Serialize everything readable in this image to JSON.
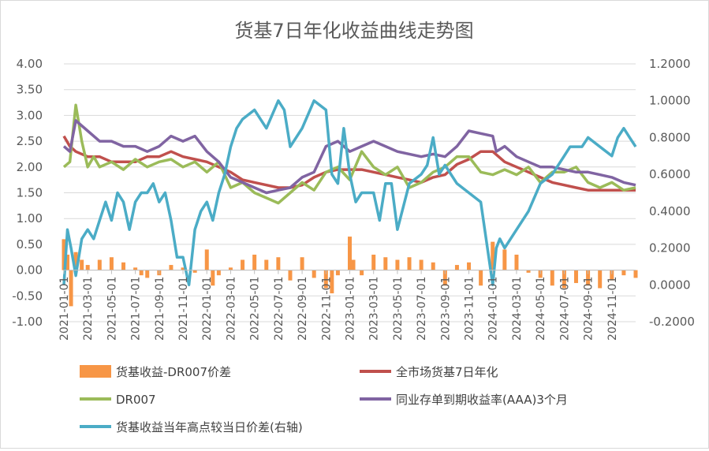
{
  "chart_data": {
    "type": "line",
    "title": "货基7日年化收益曲线走势图",
    "y_left": {
      "ticks": [
        "4.00",
        "3.50",
        "3.00",
        "2.50",
        "2.00",
        "1.50",
        "1.00",
        "0.50",
        "0.00",
        "-0.50",
        "-1.00"
      ],
      "ylim": [
        -1.0,
        4.0
      ]
    },
    "y_right": {
      "ticks": [
        "1.2000",
        "1.0000",
        "0.8000",
        "0.6000",
        "0.4000",
        "0.2000",
        "0.0000",
        "-0.2000"
      ],
      "ylim": [
        -0.2,
        1.2
      ]
    },
    "x_ticks": [
      "2021-01-01",
      "2021-03-01",
      "2021-05-01",
      "2021-07-01",
      "2021-09-01",
      "2021-11-01",
      "2022-01-01",
      "2022-03-01",
      "2022-05-01",
      "2022-07-01",
      "2022-09-01",
      "2022-11-01",
      "2023-01-01",
      "2023-03-01",
      "2023-05-01",
      "2023-07-01",
      "2023-09-01",
      "2023-11-01",
      "2024-01-01",
      "2024-03-01",
      "2024-05-01",
      "2024-07-01",
      "2024-09-01",
      "2024-11-01"
    ],
    "x_range_months": [
      0,
      48
    ],
    "grid": "horizontal",
    "legend_position": "bottom",
    "series": [
      {
        "name": "货基收益-DR007价差",
        "type": "bar",
        "axis": "left",
        "color": "#F79646",
        "x": [
          0,
          0.3,
          0.6,
          1,
          1.5,
          2,
          3,
          4,
          5,
          6,
          6.5,
          7,
          8,
          9,
          10,
          11,
          12,
          12.5,
          13,
          14,
          15,
          16,
          17,
          18,
          19,
          20,
          21,
          22,
          22.5,
          23,
          24,
          24.3,
          25,
          26,
          27,
          28,
          29,
          30,
          31,
          32,
          33,
          34,
          35,
          36,
          37,
          38,
          39,
          40,
          41,
          42,
          43,
          44,
          45,
          46,
          47,
          48
        ],
        "values": [
          0.6,
          0.3,
          -0.7,
          0.35,
          0.2,
          0.1,
          0.2,
          0.25,
          0.15,
          0.05,
          -0.1,
          -0.15,
          -0.1,
          0.1,
          0.05,
          -0.05,
          0.4,
          -0.3,
          -0.1,
          0.05,
          0.2,
          0.3,
          0.2,
          0.25,
          -0.2,
          0.25,
          -0.15,
          -0.35,
          -0.45,
          -0.1,
          0.65,
          0.2,
          -0.1,
          0.3,
          0.25,
          0.2,
          0.25,
          0.2,
          0.15,
          -0.3,
          0.1,
          0.15,
          -0.3,
          0.55,
          0.4,
          0.3,
          -0.05,
          -0.15,
          -0.3,
          -0.35,
          -0.25,
          -0.3,
          -0.35,
          -0.2,
          -0.1,
          -0.15
        ]
      },
      {
        "name": "全市场货基7日年化",
        "type": "line",
        "axis": "left",
        "color": "#C0504D",
        "x": [
          0,
          0.5,
          1,
          2,
          3,
          4,
          5,
          6,
          7,
          8,
          9,
          10,
          11,
          12,
          13,
          14,
          15,
          16,
          17,
          18,
          19,
          20,
          21,
          22,
          23,
          24,
          25,
          26,
          27,
          28,
          29,
          30,
          31,
          32,
          33,
          34,
          35,
          36,
          37,
          38,
          39,
          40,
          41,
          42,
          43,
          44,
          45,
          46,
          47,
          48
        ],
        "values": [
          2.6,
          2.4,
          2.3,
          2.2,
          2.2,
          2.1,
          2.1,
          2.1,
          2.2,
          2.2,
          2.3,
          2.2,
          2.15,
          2.1,
          2.0,
          1.9,
          1.75,
          1.7,
          1.65,
          1.6,
          1.6,
          1.65,
          1.8,
          1.9,
          1.95,
          1.95,
          1.95,
          1.9,
          1.85,
          1.8,
          1.75,
          1.7,
          1.8,
          1.85,
          2.05,
          2.15,
          2.3,
          2.3,
          2.1,
          2.0,
          1.9,
          1.8,
          1.7,
          1.65,
          1.6,
          1.55,
          1.55,
          1.55,
          1.55,
          1.55
        ]
      },
      {
        "name": "DR007",
        "type": "line",
        "axis": "left",
        "color": "#9BBB59",
        "x": [
          0,
          0.5,
          1,
          1.5,
          2,
          2.5,
          3,
          4,
          5,
          6,
          7,
          8,
          9,
          10,
          11,
          12,
          13,
          14,
          15,
          16,
          17,
          18,
          19,
          20,
          21,
          22,
          23,
          24,
          25,
          26,
          27,
          28,
          29,
          30,
          31,
          32,
          33,
          34,
          35,
          36,
          37,
          38,
          39,
          40,
          41,
          42,
          43,
          44,
          45,
          46,
          47,
          48
        ],
        "values": [
          2.0,
          2.1,
          3.2,
          2.5,
          2.0,
          2.2,
          2.0,
          2.1,
          1.95,
          2.15,
          2.0,
          2.1,
          2.15,
          2.0,
          2.1,
          1.9,
          2.1,
          1.6,
          1.7,
          1.5,
          1.4,
          1.3,
          1.5,
          1.7,
          1.55,
          1.9,
          2.0,
          1.75,
          2.3,
          2.0,
          1.85,
          2.0,
          1.6,
          1.7,
          1.9,
          2.0,
          2.2,
          2.2,
          1.9,
          1.85,
          1.95,
          1.85,
          2.0,
          1.7,
          1.9,
          1.9,
          2.0,
          1.7,
          1.6,
          1.7,
          1.55,
          1.6
        ]
      },
      {
        "name": "同业存单到期收益率(AAA)3个月",
        "type": "line",
        "axis": "left",
        "color": "#8064A2",
        "x": [
          0,
          0.5,
          1,
          1.5,
          2,
          3,
          4,
          5,
          6,
          7,
          8,
          9,
          10,
          11,
          12,
          13,
          14,
          15,
          16,
          17,
          18,
          19,
          20,
          21,
          22,
          23,
          24,
          25,
          26,
          27,
          28,
          29,
          30,
          31,
          32,
          33,
          34,
          35,
          36,
          36.3,
          37,
          38,
          39,
          40,
          41,
          42,
          43,
          44,
          45,
          46,
          47,
          48
        ],
        "values": [
          2.4,
          2.3,
          2.9,
          2.8,
          2.7,
          2.5,
          2.5,
          2.4,
          2.4,
          2.3,
          2.4,
          2.6,
          2.5,
          2.6,
          2.3,
          2.1,
          1.8,
          1.7,
          1.6,
          1.5,
          1.55,
          1.6,
          1.8,
          1.9,
          2.4,
          2.5,
          2.3,
          2.4,
          2.5,
          2.4,
          2.3,
          2.25,
          2.2,
          2.25,
          2.2,
          2.4,
          2.7,
          2.65,
          2.6,
          2.3,
          2.4,
          2.2,
          2.1,
          2.0,
          2.0,
          1.95,
          1.9,
          1.9,
          1.85,
          1.8,
          1.7,
          1.65
        ]
      },
      {
        "name": "货基收益当年高点较当日价差(右轴)",
        "type": "line",
        "axis": "right",
        "color": "#4BACC6",
        "x": [
          0,
          0.3,
          0.6,
          1,
          1.5,
          2,
          2.5,
          3,
          3.5,
          4,
          4.5,
          5,
          5.5,
          6,
          6.5,
          7,
          7.5,
          8,
          8.5,
          9,
          9.5,
          10,
          10.5,
          11,
          11.5,
          12,
          12.5,
          13,
          13.5,
          14,
          14.5,
          15,
          16,
          17,
          18,
          18.5,
          19,
          20,
          21,
          22,
          22.5,
          23,
          23.5,
          24,
          24.5,
          25,
          26,
          26.5,
          27,
          27.5,
          28,
          29,
          30,
          30.5,
          31,
          31.5,
          32,
          33,
          34,
          35,
          36,
          36.3,
          36.6,
          37,
          38,
          39,
          40,
          41,
          42,
          42.5,
          43,
          43.5,
          44,
          45,
          46,
          46.5,
          47,
          47.5,
          48
        ],
        "values": [
          0.0,
          0.3,
          0.2,
          0.05,
          0.25,
          0.3,
          0.25,
          0.35,
          0.45,
          0.35,
          0.5,
          0.45,
          0.3,
          0.45,
          0.5,
          0.5,
          0.55,
          0.45,
          0.5,
          0.35,
          0.15,
          0.15,
          0.0,
          0.3,
          0.4,
          0.45,
          0.35,
          0.5,
          0.6,
          0.75,
          0.85,
          0.9,
          0.95,
          0.85,
          1.0,
          0.95,
          0.75,
          0.85,
          1.0,
          0.95,
          0.6,
          0.55,
          0.85,
          0.6,
          0.45,
          0.5,
          0.5,
          0.35,
          0.55,
          0.55,
          0.3,
          0.55,
          0.6,
          0.65,
          0.8,
          0.6,
          0.65,
          0.55,
          0.5,
          0.45,
          0.0,
          0.2,
          0.25,
          0.2,
          0.3,
          0.4,
          0.55,
          0.6,
          0.7,
          0.75,
          0.75,
          0.75,
          0.8,
          0.75,
          0.7,
          0.8,
          0.85,
          0.8,
          0.75
        ]
      }
    ]
  }
}
